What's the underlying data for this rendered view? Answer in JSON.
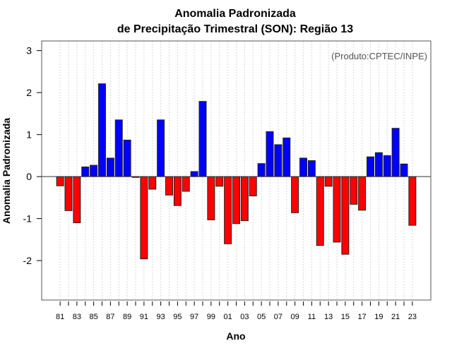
{
  "chart_data": {
    "type": "bar",
    "title": "Anomalia Padronizada",
    "subtitle": "de Precipitação Trimestral (SON): Região 13",
    "xlabel": "Ano",
    "ylabel": "Anomalia Padronizada",
    "annotation": "(Produto:CPTEC/INPE)",
    "ylim": [
      -2.94,
      3.23
    ],
    "xlim": [
      1978.8,
      2025.2
    ],
    "yticks": [
      -2,
      -1,
      0,
      1,
      2,
      3
    ],
    "ytick_labels": [
      "-2",
      "-1",
      "0",
      "1",
      "2",
      "3"
    ],
    "grid": "vertical dotted per year",
    "years": [
      1981,
      1982,
      1983,
      1984,
      1985,
      1986,
      1987,
      1988,
      1989,
      1990,
      1991,
      1992,
      1993,
      1994,
      1995,
      1996,
      1997,
      1998,
      1999,
      2000,
      2001,
      2002,
      2003,
      2004,
      2005,
      2006,
      2007,
      2008,
      2009,
      2010,
      2011,
      2012,
      2013,
      2014,
      2015,
      2016,
      2017,
      2018,
      2019,
      2020,
      2021,
      2022,
      2023
    ],
    "xtick_labels": [
      "81",
      "83",
      "85",
      "87",
      "89",
      "91",
      "93",
      "95",
      "97",
      "99",
      "01",
      "03",
      "05",
      "07",
      "09",
      "11",
      "13",
      "15",
      "17",
      "19",
      "21",
      "23"
    ],
    "values": [
      -0.22,
      -0.81,
      -1.1,
      0.23,
      0.27,
      2.21,
      0.44,
      1.35,
      0.87,
      -0.02,
      -1.96,
      -0.3,
      1.35,
      -0.44,
      -0.69,
      -0.35,
      0.12,
      1.79,
      -1.03,
      -0.23,
      -1.6,
      -1.12,
      -1.05,
      -0.46,
      0.31,
      1.07,
      0.76,
      0.92,
      -0.86,
      0.44,
      0.38,
      -1.64,
      -0.23,
      -1.56,
      -1.85,
      -0.66,
      -0.8,
      0.47,
      0.57,
      0.5,
      1.15,
      0.3,
      -1.16
    ],
    "colors": {
      "positive": "#0000ff",
      "negative": "#ff0000"
    }
  }
}
